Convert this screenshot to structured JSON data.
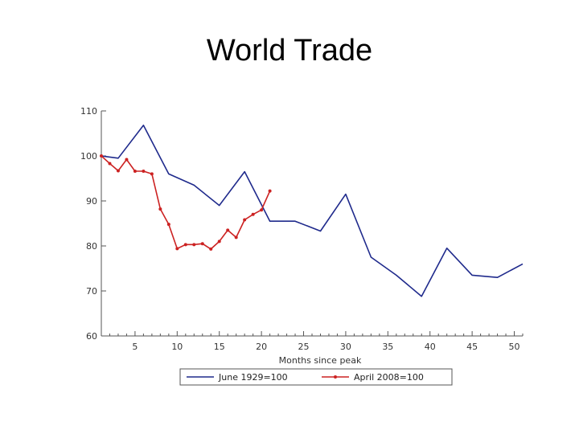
{
  "slide": {
    "title": "World Trade"
  },
  "chart_data": {
    "type": "line",
    "title": "",
    "xlabel": "Months since peak",
    "ylabel": "",
    "xlim": [
      1,
      51
    ],
    "ylim": [
      60,
      110
    ],
    "xticks": [
      5,
      10,
      15,
      20,
      25,
      30,
      35,
      40,
      45,
      50
    ],
    "yticks": [
      60,
      70,
      80,
      90,
      100,
      110
    ],
    "grid": false,
    "legend_position": "bottom",
    "series": [
      {
        "name": "June 1929=100",
        "color": "#1f2a8c",
        "markers": false,
        "x": [
          1,
          3,
          6,
          9,
          12,
          15,
          18,
          21,
          24,
          27,
          30,
          33,
          36,
          39,
          42,
          45,
          48,
          51
        ],
        "y": [
          100,
          99.5,
          106.8,
          96,
          93.5,
          89,
          96.5,
          85.5,
          85.5,
          83.3,
          91.5,
          77.5,
          73.5,
          68.8,
          79.5,
          73.5,
          73,
          76
        ]
      },
      {
        "name": "April 2008=100",
        "color": "#cc2222",
        "markers": true,
        "x": [
          1,
          2,
          3,
          4,
          5,
          6,
          7,
          8,
          9,
          10,
          11,
          12,
          13,
          14,
          15,
          16,
          17,
          18,
          19,
          20,
          21
        ],
        "y": [
          100,
          98.3,
          96.7,
          99.2,
          96.6,
          96.6,
          96,
          88.2,
          84.8,
          79.4,
          80.3,
          80.3,
          80.5,
          79.3,
          81,
          83.5,
          81.9,
          85.8,
          87,
          88,
          92.2
        ]
      }
    ]
  }
}
